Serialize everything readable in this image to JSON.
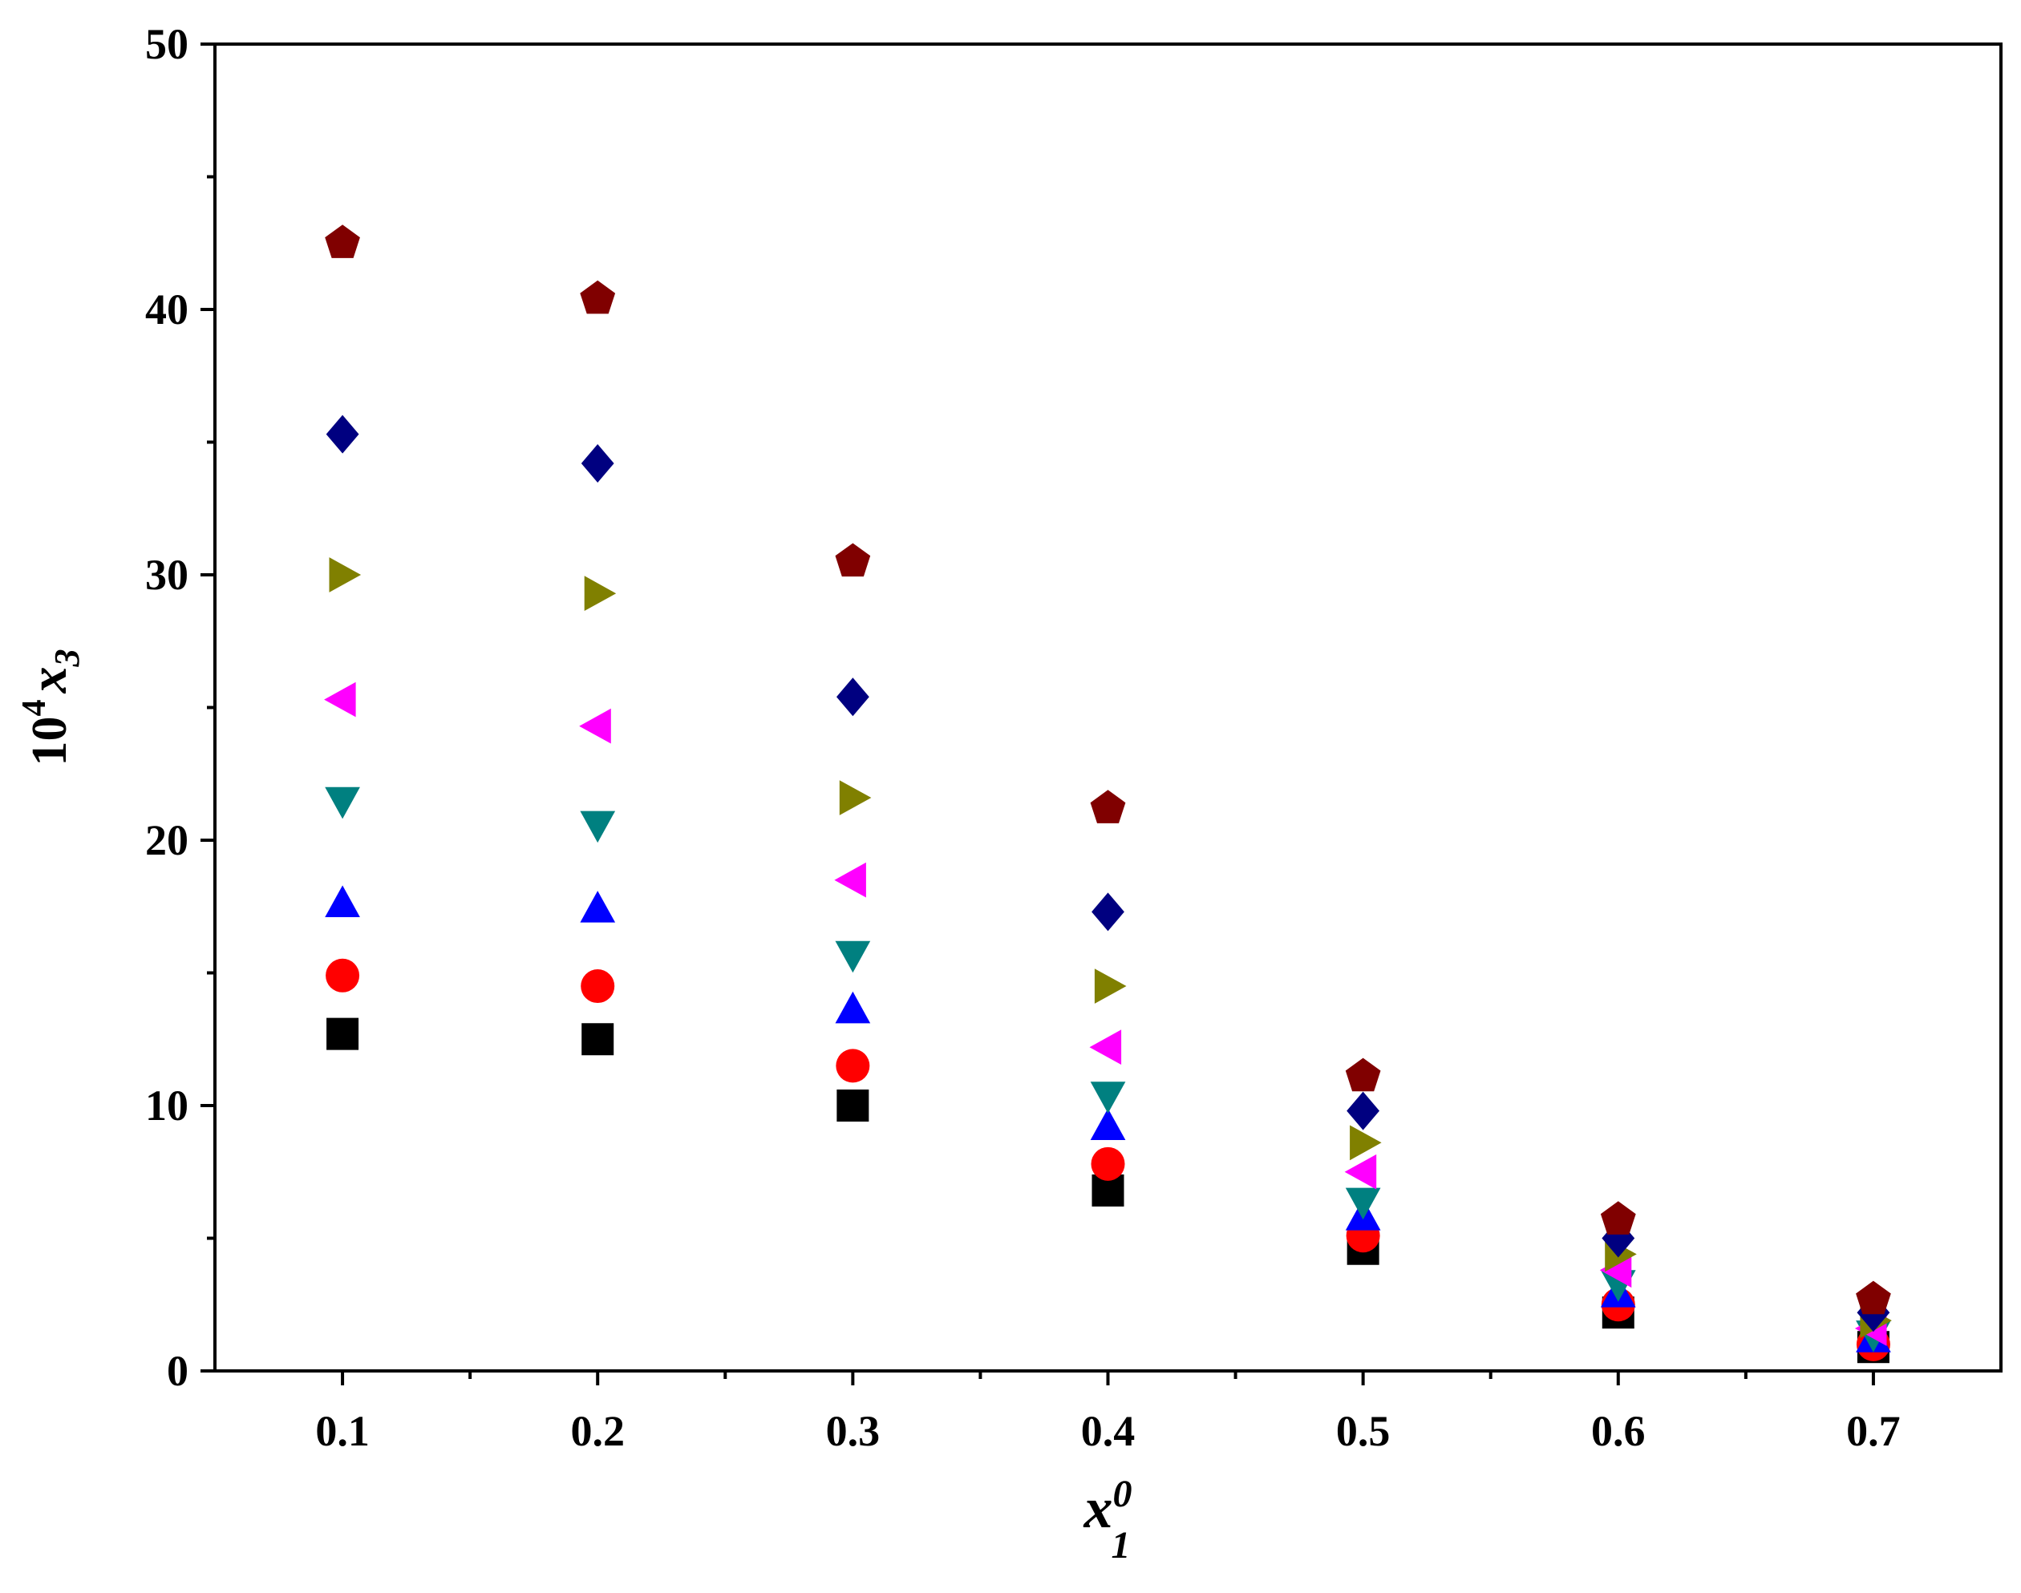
{
  "chart_data": {
    "type": "scatter",
    "title": "",
    "xlabel": {
      "base": "x",
      "sup": "0",
      "sub": "1"
    },
    "ylabel": {
      "prefix": "10",
      "prefix_sup": "4",
      "base": "x",
      "sub": "3"
    },
    "xlim": [
      0.05,
      0.75
    ],
    "ylim": [
      0,
      50
    ],
    "xticks": [
      "0.1",
      "0.2",
      "0.3",
      "0.4",
      "0.5",
      "0.6",
      "0.7"
    ],
    "yticks": [
      "0",
      "10",
      "20",
      "30",
      "40",
      "50"
    ],
    "grid": false,
    "legend": false,
    "x": [
      0.1,
      0.2,
      0.3,
      0.4,
      0.5,
      0.6,
      0.7
    ],
    "series": [
      {
        "marker": "square",
        "color": "#000000",
        "values": [
          12.7,
          12.5,
          10.0,
          6.8,
          4.6,
          2.2,
          0.9
        ]
      },
      {
        "marker": "circle",
        "color": "#ff0000",
        "values": [
          14.9,
          14.5,
          11.5,
          7.8,
          5.1,
          2.5,
          1.0
        ]
      },
      {
        "marker": "triangle-up",
        "color": "#0000ff",
        "values": [
          17.6,
          17.4,
          13.6,
          9.2,
          5.8,
          2.9,
          1.2
        ]
      },
      {
        "marker": "triangle-down",
        "color": "#008080",
        "values": [
          21.5,
          20.6,
          15.7,
          10.4,
          6.4,
          3.3,
          1.4
        ]
      },
      {
        "marker": "triangle-left",
        "color": "#ff00ff",
        "values": [
          25.3,
          24.3,
          18.5,
          12.2,
          7.5,
          3.8,
          1.6
        ]
      },
      {
        "marker": "triangle-right",
        "color": "#808000",
        "values": [
          30.0,
          29.3,
          21.6,
          14.5,
          8.6,
          4.4,
          1.9
        ]
      },
      {
        "marker": "diamond",
        "color": "#000080",
        "values": [
          35.3,
          34.2,
          25.4,
          17.3,
          9.8,
          5.0,
          2.2
        ]
      },
      {
        "marker": "pentagon",
        "color": "#800000",
        "values": [
          42.5,
          40.4,
          30.5,
          21.2,
          11.1,
          5.7,
          2.7
        ]
      }
    ]
  }
}
